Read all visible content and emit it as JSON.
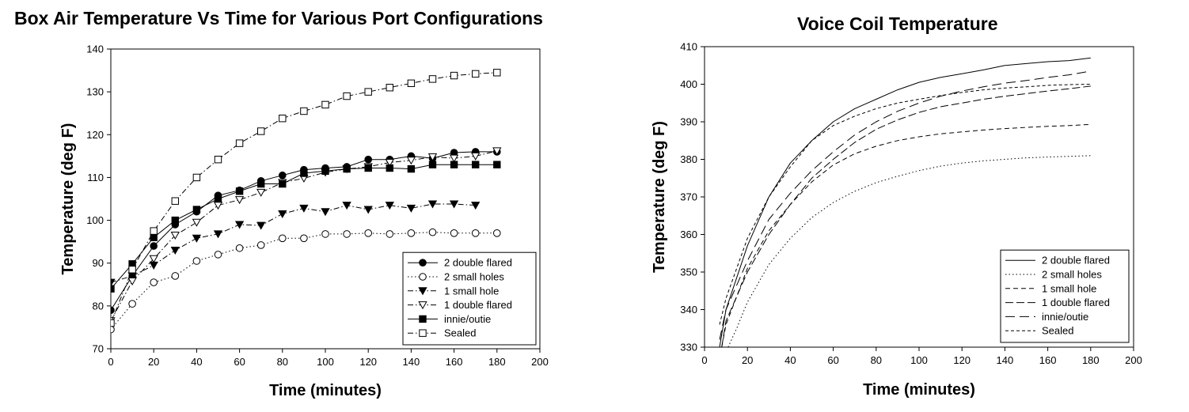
{
  "chart_data": [
    {
      "type": "line",
      "title": "Box Air Temperature Vs Time for Various Port Configurations",
      "xlabel": "Time (minutes)",
      "ylabel": "Temperature (deg F)",
      "xlim": [
        0,
        200
      ],
      "ylim": [
        70,
        140
      ],
      "xticks": [
        0,
        20,
        40,
        60,
        80,
        100,
        120,
        140,
        160,
        180,
        200
      ],
      "yticks": [
        70,
        80,
        90,
        100,
        110,
        120,
        130,
        140
      ],
      "grid": false,
      "legend_position": "bottom-right",
      "series": [
        {
          "name": "2 double flared",
          "marker": "filled-circle",
          "line": "solid",
          "x": [
            0,
            10,
            20,
            30,
            40,
            50,
            60,
            70,
            80,
            90,
            100,
            110,
            120,
            130,
            140,
            150,
            160,
            170,
            180
          ],
          "y": [
            79,
            87,
            94,
            99,
            102,
            105.8,
            107,
            109.2,
            110.5,
            111.8,
            112.2,
            112.5,
            114.2,
            114.2,
            115,
            114.5,
            115.8,
            116,
            116
          ]
        },
        {
          "name": "2 small holes",
          "marker": "open-circle",
          "line": "dotted",
          "x": [
            0,
            10,
            20,
            30,
            40,
            50,
            60,
            70,
            80,
            90,
            100,
            110,
            120,
            130,
            140,
            150,
            160,
            170,
            180
          ],
          "y": [
            74.5,
            80.5,
            85.5,
            87,
            90.5,
            92,
            93.5,
            94.2,
            95.8,
            95.8,
            96.8,
            96.8,
            97,
            96.8,
            97,
            97.2,
            97,
            97,
            97
          ]
        },
        {
          "name": "1 small hole",
          "marker": "filled-triangle-down",
          "line": "dash-dot",
          "x": [
            0,
            10,
            20,
            30,
            40,
            50,
            60,
            70,
            80,
            90,
            100,
            110,
            120,
            130,
            140,
            150,
            160,
            170
          ],
          "y": [
            85.5,
            87,
            89.5,
            93,
            95.8,
            96.8,
            99,
            98.8,
            101.5,
            102.8,
            102,
            103.5,
            102.5,
            103.5,
            102.8,
            103.8,
            103.8,
            103.5
          ]
        },
        {
          "name": "1 double flared",
          "marker": "open-triangle-down",
          "line": "dash-dot",
          "x": [
            0,
            10,
            20,
            30,
            40,
            50,
            60,
            70,
            80,
            90,
            100,
            110,
            120,
            130,
            140,
            150,
            160,
            170,
            180
          ],
          "y": [
            76.5,
            85.8,
            91,
            96.5,
            99.5,
            103.5,
            104.8,
            106.5,
            108.8,
            109.8,
            111.2,
            112,
            112.5,
            113.5,
            114,
            114.8,
            114.5,
            115,
            116.2
          ]
        },
        {
          "name": "innie/outie",
          "marker": "filled-square",
          "line": "solid",
          "x": [
            0,
            10,
            20,
            30,
            40,
            50,
            60,
            70,
            80,
            90,
            100,
            110,
            120,
            130,
            140,
            150,
            160,
            170,
            180
          ],
          "y": [
            84,
            89.8,
            96,
            100,
            102.5,
            105,
            106.8,
            108.5,
            108.5,
            111,
            111.5,
            112,
            112.2,
            112.2,
            112,
            113,
            113,
            113,
            113
          ]
        },
        {
          "name": "Sealed",
          "marker": "open-square",
          "line": "dash-dot",
          "x": [
            0,
            10,
            20,
            30,
            40,
            50,
            60,
            70,
            80,
            90,
            100,
            110,
            120,
            130,
            140,
            150,
            160,
            170,
            180
          ],
          "y": [
            76,
            88.5,
            97.5,
            104.5,
            110,
            114.2,
            118,
            120.8,
            123.8,
            125.5,
            127,
            129,
            130,
            131,
            132,
            133,
            133.8,
            134.2,
            134.5
          ]
        }
      ]
    },
    {
      "type": "line",
      "title": "Voice Coil Temperature",
      "xlabel": "Time (minutes)",
      "ylabel": "Temperature (deg F)",
      "xlim": [
        0,
        200
      ],
      "ylim": [
        330,
        410
      ],
      "xticks": [
        0,
        20,
        40,
        60,
        80,
        100,
        120,
        140,
        160,
        180,
        200
      ],
      "yticks": [
        330,
        340,
        350,
        360,
        370,
        380,
        390,
        400,
        410
      ],
      "grid": false,
      "legend_position": "bottom-right",
      "series": [
        {
          "name": "2 double flared",
          "line": "solid",
          "x": [
            7,
            10,
            20,
            30,
            40,
            50,
            60,
            70,
            80,
            90,
            100,
            110,
            120,
            130,
            140,
            150,
            160,
            170,
            180
          ],
          "y": [
            330,
            340,
            357,
            370,
            379,
            385,
            390,
            393.5,
            396,
            398.5,
            400.5,
            401.8,
            402.8,
            403.8,
            405,
            405.5,
            406,
            406.3,
            407
          ]
        },
        {
          "name": "2 small holes",
          "line": "dotted",
          "x": [
            11,
            15,
            20,
            30,
            40,
            50,
            60,
            70,
            80,
            90,
            100,
            110,
            120,
            130,
            140,
            150,
            160,
            170,
            180
          ],
          "y": [
            330,
            335,
            342,
            352,
            359,
            364.5,
            368.5,
            371.5,
            373.8,
            375.5,
            377,
            378.2,
            379,
            379.6,
            380,
            380.4,
            380.6,
            380.8,
            381
          ]
        },
        {
          "name": "1 small hole",
          "line": "dashed-medium",
          "x": [
            8,
            10,
            20,
            30,
            40,
            50,
            60,
            70,
            80,
            90,
            100,
            110,
            120,
            130,
            140,
            150,
            160,
            170,
            180
          ],
          "y": [
            330,
            336,
            351,
            361,
            368,
            374,
            378.5,
            381.5,
            383.5,
            385,
            386,
            386.8,
            387.3,
            387.8,
            388.2,
            388.5,
            388.8,
            389,
            389.3
          ]
        },
        {
          "name": "1 double flared",
          "line": "dashed-long",
          "x": [
            8,
            10,
            20,
            30,
            40,
            50,
            60,
            70,
            80,
            90,
            100,
            110,
            120,
            130,
            140,
            150,
            160,
            170,
            180
          ],
          "y": [
            330,
            337,
            350,
            360,
            368,
            375,
            380,
            384.5,
            388,
            390.5,
            392.5,
            394,
            395,
            396,
            396.8,
            397.5,
            398.2,
            398.8,
            399.5
          ]
        },
        {
          "name": "innie/outie",
          "line": "dashed-long-gap",
          "x": [
            7,
            10,
            20,
            30,
            40,
            50,
            60,
            70,
            80,
            90,
            100,
            110,
            120,
            130,
            140,
            150,
            160,
            170,
            180
          ],
          "y": [
            332,
            340,
            353,
            364,
            371,
            377,
            382,
            386.5,
            390,
            392.8,
            395,
            396.8,
            398.2,
            399.3,
            400.3,
            401,
            401.8,
            402.5,
            403.5
          ]
        },
        {
          "name": "Sealed",
          "line": "dashed-short",
          "x": [
            7,
            10,
            20,
            30,
            40,
            50,
            60,
            70,
            80,
            90,
            100,
            110,
            120,
            130,
            140,
            150,
            160,
            170,
            180
          ],
          "y": [
            336,
            343,
            359,
            370,
            378,
            385,
            389,
            391.5,
            393.5,
            395,
            396,
            397,
            397.8,
            398.5,
            399,
            399.3,
            399.7,
            399.9,
            400
          ]
        }
      ]
    }
  ]
}
